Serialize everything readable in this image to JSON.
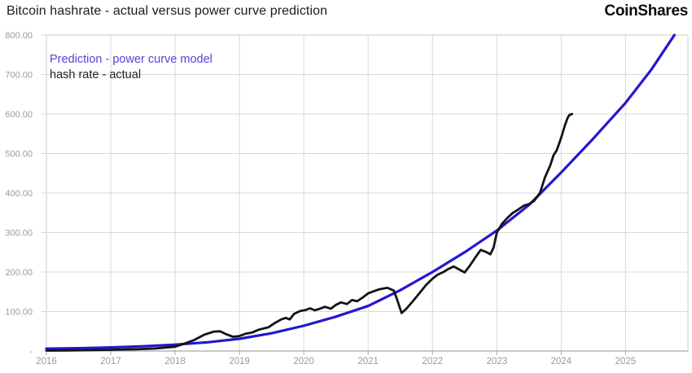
{
  "header": {
    "title": "Bitcoin hashrate - actual versus power curve prediction",
    "brand": "CoinShares"
  },
  "legend": [
    {
      "label": "Prediction - power curve model",
      "color": "#5045d8"
    },
    {
      "label": "hash rate - actual",
      "color": "#232323"
    }
  ],
  "chart_data": {
    "type": "line",
    "title": "Bitcoin hashrate - actual versus power curve prediction",
    "xlabel": "",
    "ylabel": "",
    "x_range": [
      2016,
      2025.97
    ],
    "y_range": [
      0,
      800
    ],
    "grid": true,
    "legend_position": "top-left-inside",
    "colors": {
      "grid": "#d8d8d8",
      "border": "#cdcdcd",
      "axis": "#a6a6a6",
      "tick_label": "#9b9b9b"
    },
    "x_ticks": [
      {
        "value": 2016,
        "label": "2016"
      },
      {
        "value": 2017,
        "label": "2017"
      },
      {
        "value": 2018,
        "label": "2018"
      },
      {
        "value": 2019,
        "label": "2019"
      },
      {
        "value": 2020,
        "label": "2020"
      },
      {
        "value": 2021,
        "label": "2021"
      },
      {
        "value": 2022,
        "label": "2022"
      },
      {
        "value": 2023,
        "label": "2023"
      },
      {
        "value": 2024,
        "label": "2024"
      },
      {
        "value": 2025,
        "label": "2025"
      }
    ],
    "y_ticks": [
      {
        "value": 800,
        "label": "800.00"
      },
      {
        "value": 700,
        "label": "700.00"
      },
      {
        "value": 600,
        "label": "600.00"
      },
      {
        "value": 500,
        "label": "500.00"
      },
      {
        "value": 400,
        "label": "400.00"
      },
      {
        "value": 300,
        "label": "300.00"
      },
      {
        "value": 200,
        "label": "200.00"
      },
      {
        "value": 100,
        "label": "100.00"
      },
      {
        "value": 0,
        "label": "-"
      }
    ],
    "series": [
      {
        "id": "prediction",
        "name": "Prediction - power curve model",
        "color": "#2318cd",
        "stroke_width": 3.2,
        "points": [
          [
            2016,
            6
          ],
          [
            2016.5,
            7
          ],
          [
            2017,
            9
          ],
          [
            2017.5,
            12
          ],
          [
            2018,
            16
          ],
          [
            2018.5,
            22
          ],
          [
            2019,
            31
          ],
          [
            2019.5,
            45
          ],
          [
            2020,
            64
          ],
          [
            2020.5,
            87
          ],
          [
            2021,
            114
          ],
          [
            2021.5,
            154
          ],
          [
            2022,
            200
          ],
          [
            2022.5,
            250
          ],
          [
            2023,
            305
          ],
          [
            2023.5,
            370
          ],
          [
            2024,
            452
          ],
          [
            2024.5,
            538
          ],
          [
            2025,
            628
          ],
          [
            2025.4,
            712
          ],
          [
            2025.76,
            800
          ]
        ]
      },
      {
        "id": "actual",
        "name": "hash rate - actual",
        "color": "#141414",
        "stroke_width": 2.8,
        "points": [
          [
            2016,
            1
          ],
          [
            2016.3,
            1.5
          ],
          [
            2016.6,
            2
          ],
          [
            2017,
            3
          ],
          [
            2017.4,
            4.5
          ],
          [
            2017.7,
            6.5
          ],
          [
            2018,
            11
          ],
          [
            2018.1,
            16
          ],
          [
            2018.2,
            22
          ],
          [
            2018.3,
            28
          ],
          [
            2018.45,
            41
          ],
          [
            2018.6,
            49
          ],
          [
            2018.7,
            50
          ],
          [
            2018.8,
            42
          ],
          [
            2018.9,
            36
          ],
          [
            2019,
            38
          ],
          [
            2019.1,
            44
          ],
          [
            2019.2,
            47
          ],
          [
            2019.3,
            54
          ],
          [
            2019.45,
            60
          ],
          [
            2019.55,
            71
          ],
          [
            2019.65,
            80
          ],
          [
            2019.72,
            84
          ],
          [
            2019.78,
            80
          ],
          [
            2019.85,
            94
          ],
          [
            2019.94,
            101
          ],
          [
            2020.03,
            104
          ],
          [
            2020.1,
            108
          ],
          [
            2020.17,
            103
          ],
          [
            2020.25,
            107
          ],
          [
            2020.33,
            112
          ],
          [
            2020.42,
            107
          ],
          [
            2020.5,
            117
          ],
          [
            2020.58,
            123
          ],
          [
            2020.67,
            119
          ],
          [
            2020.75,
            129
          ],
          [
            2020.83,
            126
          ],
          [
            2020.92,
            136
          ],
          [
            2021,
            146
          ],
          [
            2021.08,
            151
          ],
          [
            2021.17,
            156
          ],
          [
            2021.3,
            160
          ],
          [
            2021.4,
            153
          ],
          [
            2021.45,
            130
          ],
          [
            2021.52,
            96
          ],
          [
            2021.6,
            108
          ],
          [
            2021.7,
            127
          ],
          [
            2021.8,
            147
          ],
          [
            2021.9,
            167
          ],
          [
            2022,
            183
          ],
          [
            2022.08,
            193
          ],
          [
            2022.17,
            200
          ],
          [
            2022.25,
            208
          ],
          [
            2022.33,
            214
          ],
          [
            2022.42,
            206
          ],
          [
            2022.5,
            199
          ],
          [
            2022.58,
            216
          ],
          [
            2022.67,
            238
          ],
          [
            2022.75,
            256
          ],
          [
            2022.83,
            251
          ],
          [
            2022.9,
            245
          ],
          [
            2022.95,
            262
          ],
          [
            2023,
            300
          ],
          [
            2023.08,
            322
          ],
          [
            2023.17,
            338
          ],
          [
            2023.25,
            350
          ],
          [
            2023.33,
            358
          ],
          [
            2023.42,
            368
          ],
          [
            2023.5,
            372
          ],
          [
            2023.58,
            380
          ],
          [
            2023.67,
            400
          ],
          [
            2023.75,
            440
          ],
          [
            2023.83,
            470
          ],
          [
            2023.88,
            495
          ],
          [
            2023.93,
            508
          ],
          [
            2024,
            540
          ],
          [
            2024.06,
            572
          ],
          [
            2024.1,
            590
          ],
          [
            2024.13,
            598
          ],
          [
            2024.17,
            600
          ]
        ]
      }
    ]
  }
}
